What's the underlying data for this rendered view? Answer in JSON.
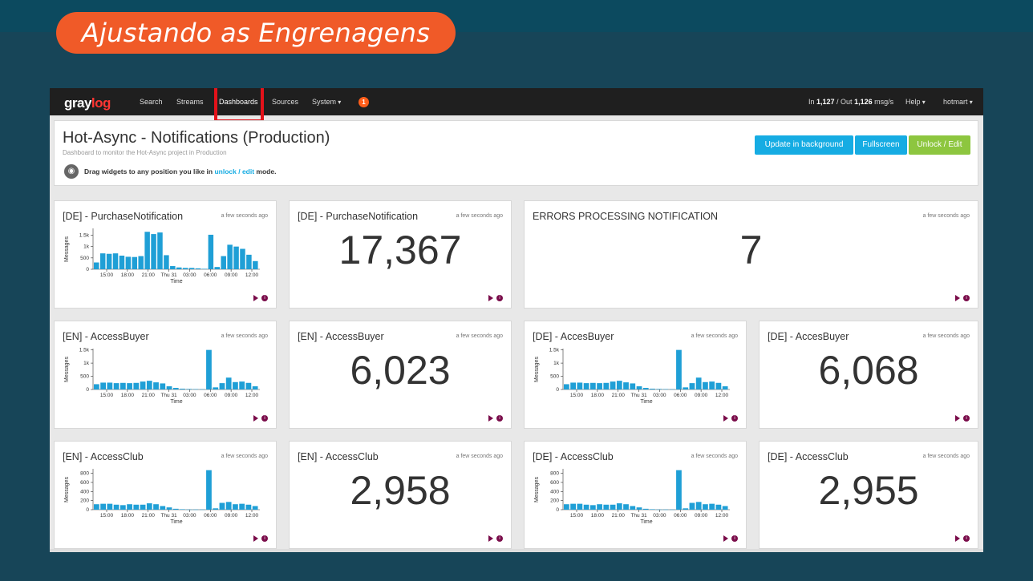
{
  "slide": {
    "title": "Ajustando as Engrenagens"
  },
  "navbar": {
    "logo_gray": "gray",
    "logo_log": "log",
    "items": [
      "Search",
      "Streams",
      "Dashboards",
      "Sources",
      "System"
    ],
    "active": "Dashboards",
    "notification_count": "1",
    "throughput_prefix": "In ",
    "in_count": "1,127",
    "throughput_mid": " / Out ",
    "out_count": "1,126",
    "throughput_suffix": " msg/s",
    "help": "Help",
    "user": "hotmart"
  },
  "dashboard": {
    "title": "Hot-Async - Notifications (Production)",
    "description": "Dashboard to monitor the Hot-Async project in Production",
    "hint_prefix": "Drag widgets to any position you like in ",
    "hint_link": "unlock / edit",
    "hint_suffix": " mode.",
    "buttons": {
      "update": "Update in background",
      "fullscreen": "Fullscreen",
      "unlock": "Unlock / Edit"
    }
  },
  "chart_labels": {
    "x_ticks": [
      "15:00",
      "18:00",
      "21:00",
      "Thu 31",
      "03:00",
      "06:00",
      "09:00",
      "12:00"
    ],
    "xlabel": "Time",
    "ylabel": "Messages"
  },
  "widgets": [
    {
      "title": "[DE] - PurchaseNotification",
      "time": "a few seconds ago",
      "kind": "chart",
      "chart": 0
    },
    {
      "title": "[DE] - PurchaseNotification",
      "time": "a few seconds ago",
      "kind": "number",
      "value": "17,367"
    },
    {
      "title": "ERRORS PROCESSING NOTIFICATION",
      "time": "a few seconds ago",
      "kind": "number",
      "value": "7"
    },
    {
      "title": "[EN] - AccessBuyer",
      "time": "a few seconds ago",
      "kind": "chart",
      "chart": 1
    },
    {
      "title": "[EN] - AccessBuyer",
      "time": "a few seconds ago",
      "kind": "number",
      "value": "6,023"
    },
    {
      "title": "[DE] - AccesBuyer",
      "time": "a few seconds ago",
      "kind": "chart",
      "chart": 2
    },
    {
      "title": "[DE] - AccesBuyer",
      "time": "a few seconds ago",
      "kind": "number",
      "value": "6,068"
    },
    {
      "title": "[EN] - AccessClub",
      "time": "a few seconds ago",
      "kind": "chart",
      "chart": 3
    },
    {
      "title": "[EN] - AccessClub",
      "time": "a few seconds ago",
      "kind": "number",
      "value": "2,958"
    },
    {
      "title": "[DE] - AccessClub",
      "time": "a few seconds ago",
      "kind": "chart",
      "chart": 4
    },
    {
      "title": "[DE] - AccessClub",
      "time": "a few seconds ago",
      "kind": "number",
      "value": "2,955"
    }
  ],
  "chart_data": [
    {
      "type": "bar",
      "title": "[DE] - PurchaseNotification",
      "xlabel": "Time",
      "ylabel": "Messages",
      "yticks": [
        "0",
        "500",
        "1k",
        "1.5k"
      ],
      "ylim": [
        0,
        1800
      ],
      "color": "#1f9fd6",
      "values": [
        300,
        700,
        680,
        700,
        600,
        550,
        540,
        580,
        1650,
        1550,
        1620,
        620,
        140,
        80,
        60,
        60,
        40,
        20,
        1520,
        100,
        580,
        1080,
        1000,
        900,
        640,
        360
      ]
    },
    {
      "type": "bar",
      "title": "[EN] - AccessBuyer",
      "xlabel": "Time",
      "ylabel": "Messages",
      "yticks": [
        "0",
        "500",
        "1k",
        "1.5k"
      ],
      "ylim": [
        0,
        1550
      ],
      "color": "#1f9fd6",
      "values": [
        200,
        260,
        260,
        240,
        250,
        240,
        250,
        300,
        330,
        270,
        230,
        120,
        60,
        30,
        20,
        15,
        10,
        1500,
        80,
        240,
        450,
        280,
        300,
        250,
        120
      ]
    },
    {
      "type": "bar",
      "title": "[DE] - AccesBuyer",
      "xlabel": "Time",
      "ylabel": "Messages",
      "yticks": [
        "0",
        "500",
        "1k",
        "1.5k"
      ],
      "ylim": [
        0,
        1550
      ],
      "color": "#1f9fd6",
      "values": [
        200,
        260,
        260,
        240,
        250,
        240,
        250,
        300,
        330,
        270,
        230,
        120,
        60,
        30,
        20,
        15,
        10,
        1500,
        80,
        240,
        450,
        280,
        300,
        250,
        120
      ]
    },
    {
      "type": "bar",
      "title": "[EN] - AccessClub",
      "xlabel": "Time",
      "ylabel": "Messages",
      "yticks": [
        "0",
        "200",
        "400",
        "600",
        "800"
      ],
      "ylim": [
        0,
        900
      ],
      "color": "#1f9fd6",
      "values": [
        120,
        130,
        130,
        110,
        100,
        120,
        110,
        110,
        140,
        120,
        80,
        50,
        20,
        10,
        5,
        5,
        5,
        870,
        30,
        150,
        170,
        120,
        130,
        110,
        80
      ]
    },
    {
      "type": "bar",
      "title": "[DE] - AccessClub",
      "xlabel": "Time",
      "ylabel": "Messages",
      "yticks": [
        "0",
        "200",
        "400",
        "600",
        "800"
      ],
      "ylim": [
        0,
        900
      ],
      "color": "#1f9fd6",
      "values": [
        120,
        130,
        130,
        110,
        100,
        120,
        110,
        110,
        140,
        120,
        80,
        50,
        20,
        10,
        5,
        5,
        5,
        870,
        30,
        150,
        170,
        120,
        130,
        110,
        80
      ]
    }
  ]
}
